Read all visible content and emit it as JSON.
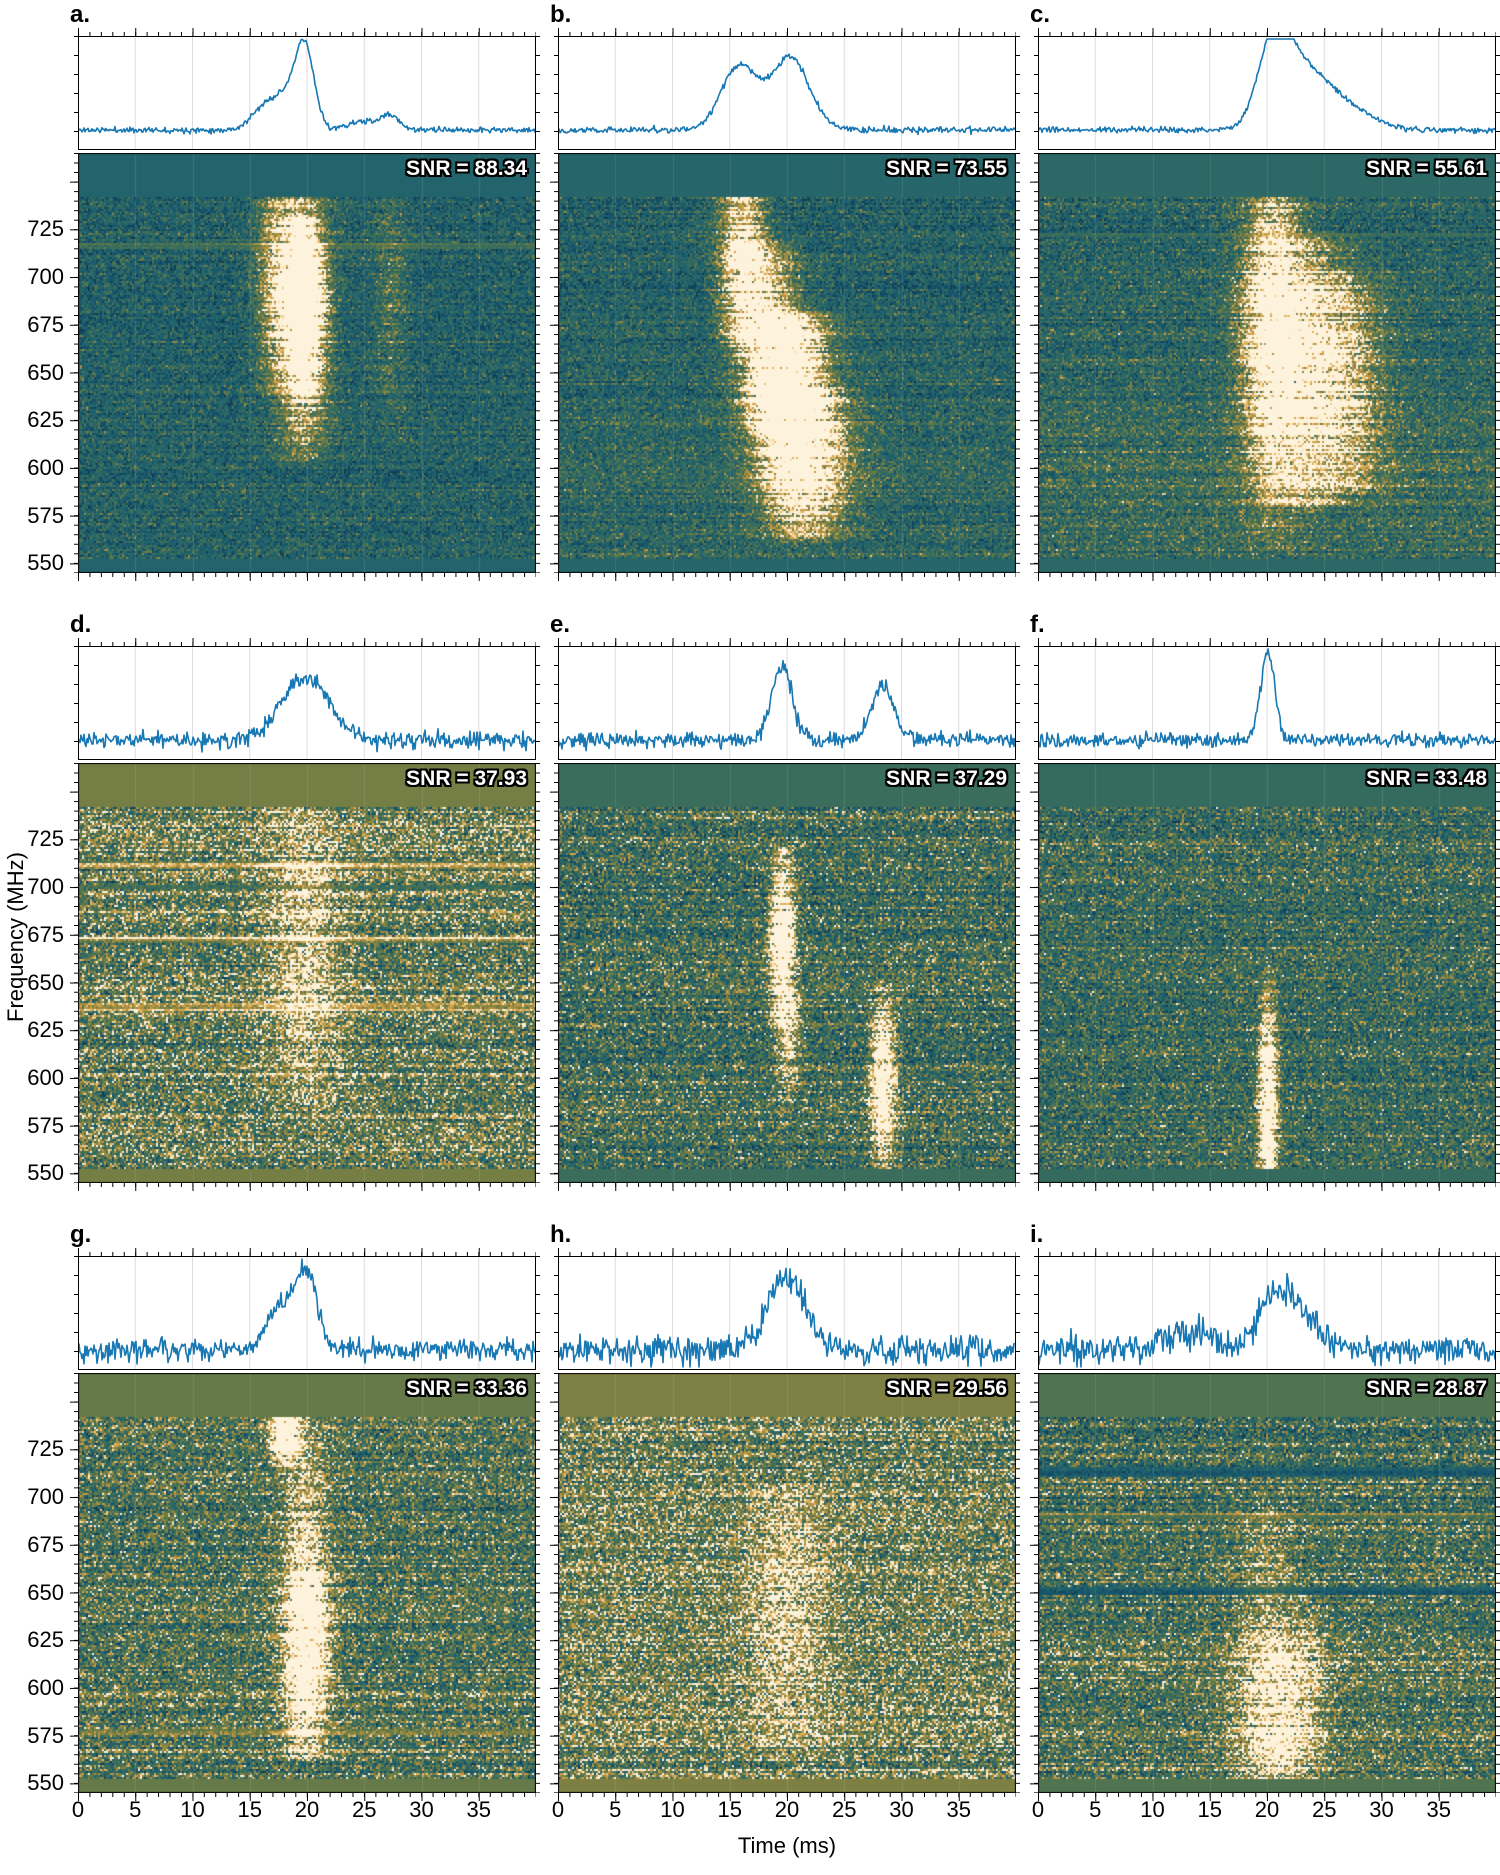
{
  "figure": {
    "description": "3x3 grid of radio burst detections, each with pulse profile and dynamic spectrum",
    "grid": {
      "rows": 3,
      "cols": 3
    }
  },
  "chart_data": {
    "type": "heatmap",
    "subtype": "dynamic-spectrum-waterfall-with-profile",
    "x": {
      "label": "Time (ms)",
      "range": [
        0,
        40
      ],
      "major_ticks": [
        0,
        5,
        10,
        15,
        20,
        25,
        30,
        35
      ],
      "minor_step": 1
    },
    "y": {
      "label": "Frequency (MHz)",
      "range": [
        545,
        765
      ],
      "major_ticks": [
        550,
        575,
        600,
        625,
        650,
        675,
        700,
        725
      ],
      "minor_step": 5
    },
    "line_color": "#1878b4",
    "grid_color": "#dcdcdc",
    "colormap": {
      "stops": [
        [
          0.0,
          "#0c3b52"
        ],
        [
          0.18,
          "#15506a"
        ],
        [
          0.34,
          "#20636e"
        ],
        [
          0.48,
          "#356b5e"
        ],
        [
          0.6,
          "#55764c"
        ],
        [
          0.7,
          "#7d8042"
        ],
        [
          0.8,
          "#b2903f"
        ],
        [
          0.88,
          "#d9a950"
        ],
        [
          0.94,
          "#eeca83"
        ],
        [
          0.98,
          "#f8e3b8"
        ],
        [
          1.0,
          "#fdf3dd"
        ]
      ]
    },
    "panels": [
      {
        "id": "a",
        "label": "a.",
        "snr_value": 88.34,
        "snr_label": "SNR = 88.34",
        "seed": 11,
        "noise": {
          "mean": 0.32,
          "spread": 0.15,
          "row_spread": 0.05,
          "grad": 0.03
        },
        "band_v": 0.36,
        "bursts": [
          {
            "t": 19.6,
            "ts": 1.5,
            "f_lo": 605,
            "f_hi": 748,
            "f_peak": 680,
            "f_sigma": 45,
            "amp": 1.1
          },
          {
            "t": 19.7,
            "ts": 0.9,
            "f_lo": 640,
            "f_hi": 730,
            "f_peak": 690,
            "f_sigma": 22,
            "amp": 1.4
          },
          {
            "t": 17.2,
            "ts": 1.2,
            "f_lo": 640,
            "f_hi": 748,
            "f_peak": 700,
            "f_sigma": 40,
            "amp": 0.45
          },
          {
            "t": 27.3,
            "ts": 1.0,
            "f_lo": 615,
            "f_hi": 748,
            "f_peak": 690,
            "f_sigma": 50,
            "amp": 0.22
          }
        ],
        "stripes": [
          {
            "f": 716,
            "amp": 0.22,
            "w": 3
          }
        ],
        "profile": {
          "noise_sigma": 0.016,
          "peaks": [
            {
              "t": 16.3,
              "amp": 0.26,
              "sigma": 1.1
            },
            {
              "t": 18.0,
              "amp": 0.3,
              "sigma": 0.9
            },
            {
              "t": 19.8,
              "amp": 1.0,
              "sigma": 0.85
            },
            {
              "t": 24.8,
              "amp": 0.1,
              "sigma": 1.2
            },
            {
              "t": 27.3,
              "amp": 0.17,
              "sigma": 0.8
            }
          ]
        }
      },
      {
        "id": "b",
        "label": "b.",
        "snr_value": 73.55,
        "snr_label": "SNR = 73.55",
        "seed": 22,
        "noise": {
          "mean": 0.34,
          "spread": 0.15,
          "row_spread": 0.05,
          "grad": 0.06
        },
        "band_v": 0.38,
        "bursts": [
          {
            "t": 16.2,
            "ts": 1.4,
            "f_lo": 665,
            "f_hi": 748,
            "f_peak": 712,
            "f_sigma": 35,
            "amp": 0.85
          },
          {
            "t": 18.5,
            "ts": 1.8,
            "f_lo": 620,
            "f_hi": 715,
            "f_peak": 665,
            "f_sigma": 35,
            "amp": 0.8
          },
          {
            "t": 20.5,
            "ts": 2.2,
            "f_lo": 560,
            "f_hi": 680,
            "f_peak": 640,
            "f_sigma": 38,
            "amp": 1.05
          },
          {
            "t": 22.0,
            "ts": 2.5,
            "f_lo": 565,
            "f_hi": 640,
            "f_peak": 605,
            "f_sigma": 35,
            "amp": 0.6
          }
        ],
        "stripes": [],
        "profile": {
          "noise_sigma": 0.018,
          "peaks": [
            {
              "t": 15.8,
              "amp": 0.74,
              "sigma": 1.5
            },
            {
              "t": 20.3,
              "amp": 0.84,
              "sigma": 1.7
            }
          ]
        }
      },
      {
        "id": "c",
        "label": "c.",
        "snr_value": 55.61,
        "snr_label": "SNR = 55.61",
        "seed": 33,
        "noise": {
          "mean": 0.38,
          "spread": 0.16,
          "row_spread": 0.06,
          "grad": 0.1
        },
        "band_v": 0.42,
        "bursts": [
          {
            "t": 20.5,
            "ts": 1.8,
            "f_lo": 560,
            "f_hi": 748,
            "f_peak": 680,
            "f_sigma": 60,
            "amp": 0.85
          },
          {
            "t": 23.5,
            "ts": 2.8,
            "f_lo": 580,
            "f_hi": 720,
            "f_peak": 650,
            "f_sigma": 55,
            "amp": 0.7
          },
          {
            "t": 27.0,
            "ts": 2.5,
            "f_lo": 590,
            "f_hi": 700,
            "f_peak": 640,
            "f_sigma": 50,
            "amp": 0.35
          }
        ],
        "stripes": [
          {
            "f": 722,
            "amp": 0.15,
            "w": 3
          }
        ],
        "profile": {
          "noise_sigma": 0.016,
          "peaks": [
            {
              "t": 20.7,
              "amp": 1.0,
              "sigma": 1.4
            },
            {
              "t": 23.2,
              "amp": 0.55,
              "sigma": 2.0
            },
            {
              "t": 26.5,
              "amp": 0.28,
              "sigma": 2.5
            }
          ]
        }
      },
      {
        "id": "d",
        "label": "d.",
        "snr_value": 37.93,
        "snr_label": "SNR = 37.93",
        "seed": 44,
        "noise": {
          "mean": 0.63,
          "spread": 0.24,
          "row_spread": 0.1,
          "grad": 0.0
        },
        "band_v": 0.68,
        "bursts": [
          {
            "t": 19.8,
            "ts": 2.2,
            "f_lo": 585,
            "f_hi": 748,
            "f_peak": 665,
            "f_sigma": 60,
            "amp": 0.38
          }
        ],
        "stripes": [
          {
            "f": 712,
            "amp": 0.18,
            "w": 4
          },
          {
            "f": 672,
            "amp": 0.12,
            "w": 3
          },
          {
            "f": 637,
            "amp": 0.2,
            "w": 4
          },
          {
            "f": 700,
            "amp": -0.15,
            "w": 3
          }
        ],
        "profile": {
          "noise_sigma": 0.05,
          "peaks": [
            {
              "t": 19.9,
              "amp": 0.72,
              "sigma": 2.1
            }
          ]
        }
      },
      {
        "id": "e",
        "label": "e.",
        "snr_value": 37.29,
        "snr_label": "SNR = 37.29",
        "seed": 55,
        "noise": {
          "mean": 0.5,
          "spread": 0.22,
          "row_spread": 0.07,
          "grad": 0.0
        },
        "band_v": 0.5,
        "bursts": [
          {
            "t": 19.6,
            "ts": 0.7,
            "f_lo": 630,
            "f_hi": 720,
            "f_peak": 672,
            "f_sigma": 30,
            "amp": 1.15
          },
          {
            "t": 20.1,
            "ts": 0.8,
            "f_lo": 590,
            "f_hi": 645,
            "f_peak": 625,
            "f_sigma": 25,
            "amp": 0.5
          },
          {
            "t": 28.4,
            "ts": 0.75,
            "f_lo": 550,
            "f_hi": 648,
            "f_peak": 598,
            "f_sigma": 30,
            "amp": 1.0
          }
        ],
        "stripes": [],
        "profile": {
          "noise_sigma": 0.045,
          "peaks": [
            {
              "t": 19.6,
              "amp": 0.85,
              "sigma": 0.9
            },
            {
              "t": 28.4,
              "amp": 0.62,
              "sigma": 1.0
            }
          ]
        }
      },
      {
        "id": "f",
        "label": "f.",
        "snr_value": 33.48,
        "snr_label": "SNR = 33.48",
        "seed": 66,
        "noise": {
          "mean": 0.47,
          "spread": 0.2,
          "row_spread": 0.06,
          "grad": 0.0
        },
        "band_v": 0.48,
        "bursts": [
          {
            "t": 20.1,
            "ts": 0.55,
            "f_lo": 548,
            "f_hi": 638,
            "f_peak": 578,
            "f_sigma": 28,
            "amp": 1.25
          },
          {
            "t": 20.1,
            "ts": 0.5,
            "f_lo": 600,
            "f_hi": 660,
            "f_peak": 625,
            "f_sigma": 25,
            "amp": 0.35
          }
        ],
        "stripes": [],
        "profile": {
          "noise_sigma": 0.04,
          "peaks": [
            {
              "t": 20.1,
              "amp": 1.05,
              "sigma": 0.6
            }
          ]
        }
      },
      {
        "id": "g",
        "label": "g.",
        "snr_value": 33.36,
        "snr_label": "SNR = 33.36",
        "seed": 77,
        "noise": {
          "mean": 0.55,
          "spread": 0.22,
          "row_spread": 0.08,
          "grad": 0.0
        },
        "band_v": 0.64,
        "bursts": [
          {
            "t": 19.8,
            "ts": 1.3,
            "f_lo": 565,
            "f_hi": 748,
            "f_peak": 628,
            "f_sigma": 60,
            "amp": 0.75
          },
          {
            "t": 18.1,
            "ts": 0.9,
            "f_lo": 718,
            "f_hi": 748,
            "f_peak": 733,
            "f_sigma": 12,
            "amp": 0.9
          },
          {
            "t": 20.3,
            "ts": 1.2,
            "f_lo": 590,
            "f_hi": 660,
            "f_peak": 622,
            "f_sigma": 28,
            "amp": 0.5
          }
        ],
        "stripes": [
          {
            "f": 577,
            "amp": 0.12,
            "w": 3
          }
        ],
        "profile": {
          "noise_sigma": 0.065,
          "peaks": [
            {
              "t": 17.6,
              "amp": 0.42,
              "sigma": 1.2
            },
            {
              "t": 19.9,
              "amp": 0.88,
              "sigma": 1.0
            }
          ]
        }
      },
      {
        "id": "h",
        "label": "h.",
        "snr_value": 29.56,
        "snr_label": "SNR = 29.56",
        "seed": 88,
        "noise": {
          "mean": 0.66,
          "spread": 0.24,
          "row_spread": 0.08,
          "grad": 0.0
        },
        "band_v": 0.7,
        "bursts": [
          {
            "t": 20.0,
            "ts": 2.4,
            "f_lo": 565,
            "f_hi": 705,
            "f_peak": 638,
            "f_sigma": 55,
            "amp": 0.34
          }
        ],
        "stripes": [],
        "profile": {
          "noise_sigma": 0.085,
          "peaks": [
            {
              "t": 20.0,
              "amp": 0.85,
              "sigma": 1.7
            }
          ]
        }
      },
      {
        "id": "i",
        "label": "i.",
        "snr_value": 28.87,
        "snr_label": "SNR = 28.87",
        "seed": 99,
        "noise": {
          "mean": 0.53,
          "spread": 0.22,
          "row_spread": 0.09,
          "grad": 0.0
        },
        "band_v": 0.58,
        "bursts": [
          {
            "t": 21.0,
            "ts": 2.4,
            "f_lo": 548,
            "f_hi": 648,
            "f_peak": 588,
            "f_sigma": 35,
            "amp": 0.8
          },
          {
            "t": 20.0,
            "ts": 1.8,
            "f_lo": 648,
            "f_hi": 700,
            "f_peak": 665,
            "f_sigma": 25,
            "amp": 0.22
          }
        ],
        "stripes": [
          {
            "f": 713,
            "amp": -0.22,
            "w": 5
          },
          {
            "f": 651,
            "amp": -0.18,
            "w": 4
          },
          {
            "f": 690,
            "amp": 0.1,
            "w": 3
          }
        ],
        "profile": {
          "noise_sigma": 0.09,
          "peaks": [
            {
              "t": 13.0,
              "amp": 0.22,
              "sigma": 2.0
            },
            {
              "t": 20.8,
              "amp": 0.62,
              "sigma": 1.5
            },
            {
              "t": 23.5,
              "amp": 0.3,
              "sigma": 1.6
            }
          ]
        }
      }
    ]
  }
}
